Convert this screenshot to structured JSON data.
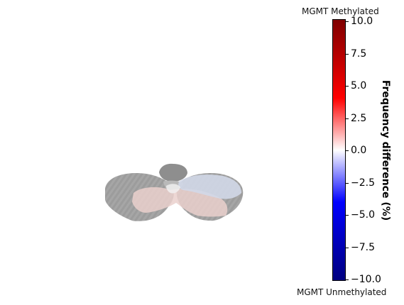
{
  "labels": {
    "top": "MGMT Methylated",
    "bottom": "MGMT Unmethylated"
  },
  "colorbar": {
    "title": "Frequency difference (%)",
    "min": -10,
    "max": 10,
    "ticks": [
      "10.0",
      "7.5",
      "5.0",
      "2.5",
      "0.0",
      "−2.5",
      "−5.0",
      "−7.5",
      "−10.0"
    ],
    "colormap": "seismic"
  },
  "colors": {
    "brain_gray": "#9a9a9a",
    "light_red_overlay": "#e9c9c6",
    "light_blue_overlay": "#cdd3e4"
  }
}
